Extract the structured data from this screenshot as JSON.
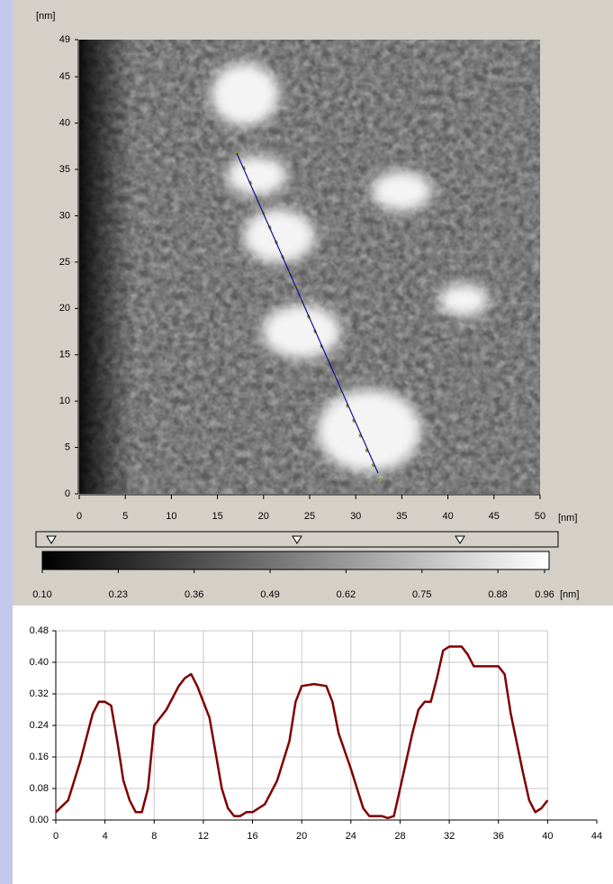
{
  "chart_data": [
    {
      "type": "image",
      "x_unit": "[nm]",
      "y_unit": "[nm]",
      "xlim": [
        0,
        50
      ],
      "ylim": [
        0,
        49
      ],
      "xticks": [
        0,
        5,
        10,
        15,
        20,
        25,
        30,
        35,
        40,
        45,
        50
      ],
      "yticks": [
        0,
        5,
        10,
        15,
        20,
        25,
        30,
        35,
        40,
        45,
        49
      ]
    },
    {
      "type": "colorbar",
      "unit": "[nm]",
      "lim": [
        0.1,
        0.96
      ],
      "ticks": [
        {
          "value": 0.1,
          "label": "0.10"
        },
        {
          "value": 0.23,
          "label": "0.23"
        },
        {
          "value": 0.36,
          "label": "0.36"
        },
        {
          "value": 0.49,
          "label": "0.49"
        },
        {
          "value": 0.62,
          "label": "0.62"
        },
        {
          "value": 0.75,
          "label": "0.75"
        },
        {
          "value": 0.88,
          "label": "0.88"
        },
        {
          "value": 0.96,
          "label": "0.96"
        }
      ]
    },
    {
      "type": "line",
      "color": "#800000",
      "grid": true,
      "xlim": [
        0,
        44
      ],
      "ylim": [
        0,
        0.48
      ],
      "xticks": [
        0,
        4,
        8,
        12,
        16,
        20,
        24,
        28,
        32,
        36,
        40,
        44
      ],
      "yticks": [
        {
          "value": 0,
          "label": "0.00"
        },
        {
          "value": 0.08,
          "label": "0.08"
        },
        {
          "value": 0.16,
          "label": "0.16"
        },
        {
          "value": 0.24,
          "label": "0.24"
        },
        {
          "value": 0.32,
          "label": "0.32"
        },
        {
          "value": 0.4,
          "label": "0.40"
        },
        {
          "value": 0.48,
          "label": "0.48"
        }
      ],
      "x": [
        0,
        1,
        2,
        3,
        3.5,
        4,
        4.5,
        5,
        5.5,
        6,
        6.5,
        7,
        7.5,
        8,
        9,
        10,
        10.5,
        11,
        11.5,
        12,
        12.5,
        13,
        13.5,
        14,
        14.5,
        15,
        15.5,
        16,
        17,
        18,
        19,
        19.5,
        20,
        21,
        22,
        22.5,
        23,
        24,
        25,
        25.5,
        26,
        26.5,
        27,
        27.5,
        28,
        29,
        29.5,
        30,
        30.5,
        31,
        31.5,
        32,
        33,
        33.5,
        34,
        35,
        36,
        36.5,
        37,
        38,
        38.5,
        39,
        39.5,
        40
      ],
      "values": [
        0.02,
        0.05,
        0.15,
        0.27,
        0.3,
        0.3,
        0.29,
        0.2,
        0.1,
        0.05,
        0.02,
        0.02,
        0.08,
        0.24,
        0.28,
        0.34,
        0.36,
        0.37,
        0.34,
        0.3,
        0.26,
        0.17,
        0.08,
        0.03,
        0.01,
        0.01,
        0.02,
        0.02,
        0.04,
        0.1,
        0.2,
        0.3,
        0.34,
        0.345,
        0.34,
        0.3,
        0.22,
        0.13,
        0.03,
        0.01,
        0.01,
        0.01,
        0.005,
        0.01,
        0.08,
        0.22,
        0.28,
        0.3,
        0.3,
        0.36,
        0.43,
        0.44,
        0.44,
        0.42,
        0.39,
        0.39,
        0.39,
        0.37,
        0.27,
        0.12,
        0.05,
        0.02,
        0.03,
        0.05
      ]
    }
  ]
}
